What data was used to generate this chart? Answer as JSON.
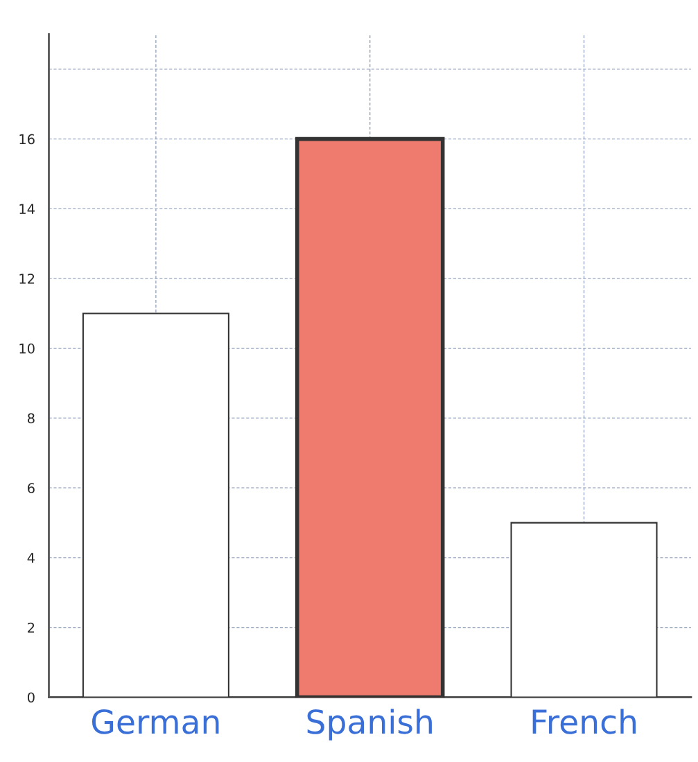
{
  "chart_data": {
    "type": "bar",
    "categories": [
      "German",
      "Spanish",
      "French"
    ],
    "values": [
      11,
      16,
      5
    ],
    "colors": [
      "#ffffff",
      "#ee7b6e",
      "#ffffff"
    ],
    "ylim": [
      0,
      19
    ],
    "yticks": [
      0,
      2,
      4,
      6,
      8,
      10,
      12,
      14,
      16,
      {
        "value": 18,
        "label": null
      }
    ],
    "grid": true
  }
}
